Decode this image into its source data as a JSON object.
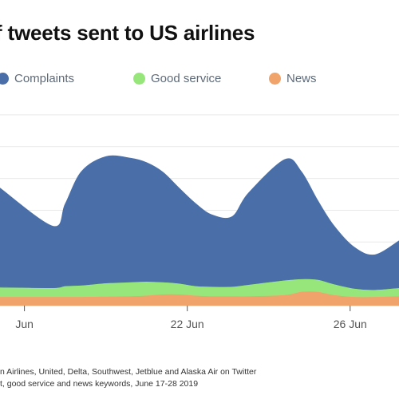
{
  "title": "f tweets sent to US airlines",
  "legend": [
    {
      "label": "Complaints",
      "color": "#4a6fa8"
    },
    {
      "label": "Good service",
      "color": "#97e67b"
    },
    {
      "label": "News",
      "color": "#f0a36a"
    }
  ],
  "source_lines": [
    "n Airlines, United, Delta, Southwest, Jetblue and Alaska Air on Twitter",
    "t, good service and news keywords, June 17-28 2019"
  ],
  "chart_data": {
    "type": "area",
    "stacked": true,
    "x": [
      17.4,
      18.7,
      19,
      19.4,
      20,
      20.6,
      21,
      21.4,
      21.8,
      22.2,
      22.6,
      23.1,
      23.5,
      24.4,
      24.8,
      25.2,
      25.6,
      26.1,
      26.6,
      27.2
    ],
    "x_ticks": [
      {
        "value": 18,
        "label": "Jun"
      },
      {
        "value": 22,
        "label": "22 Jun"
      },
      {
        "value": 26,
        "label": "26 Jun"
      }
    ],
    "xlim": [
      17.4,
      27.2
    ],
    "ylim": [
      0,
      33
    ],
    "grid": true,
    "series": [
      {
        "name": "News",
        "color": "#f0a36a",
        "values": [
          1.4,
          1.4,
          1.4,
          1.4,
          1.45,
          1.5,
          1.6,
          1.8,
          1.8,
          1.6,
          1.5,
          1.5,
          1.5,
          1.7,
          2.2,
          2.2,
          1.7,
          1.4,
          1.4,
          1.5
        ]
      },
      {
        "name": "Good service",
        "color": "#97e67b",
        "values": [
          1.5,
          1.4,
          1.7,
          1.8,
          2.1,
          2.2,
          2.2,
          1.9,
          1.7,
          1.5,
          1.5,
          1.5,
          1.8,
          2.3,
          2.0,
          1.9,
          1.7,
          1.3,
          1.1,
          1.3
        ]
      },
      {
        "name": "Complaints",
        "color": "#4a6fa8",
        "values": [
          15.6,
          9.7,
          12.9,
          17.9,
          19.9,
          19.5,
          18.7,
          17.3,
          15.0,
          13.0,
          11.3,
          11.0,
          14.4,
          19.0,
          16.9,
          12.5,
          9.2,
          6.5,
          5.5,
          7.4
        ]
      }
    ]
  }
}
